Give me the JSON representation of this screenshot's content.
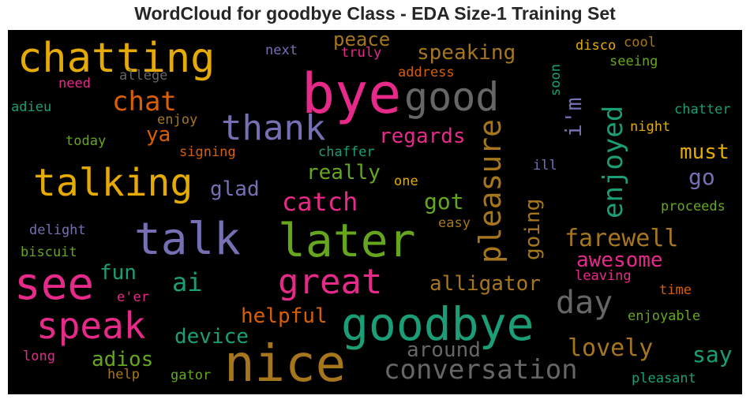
{
  "chart_data": {
    "type": "wordcloud",
    "title": "WordCloud for goodbye Class - EDA Size-1 Training Set",
    "words": [
      {
        "text": "chatting",
        "color": "#e6ab02"
      },
      {
        "text": "bye",
        "color": "#e7298a"
      },
      {
        "text": "good",
        "color": "#666666"
      },
      {
        "text": "thank",
        "color": "#7570b3"
      },
      {
        "text": "chat",
        "color": "#d95f02"
      },
      {
        "text": "peace",
        "color": "#a6761d"
      },
      {
        "text": "speaking",
        "color": "#a6761d"
      },
      {
        "text": "next",
        "color": "#7570b3"
      },
      {
        "text": "truly",
        "color": "#e7298a"
      },
      {
        "text": "disco",
        "color": "#e6ab02"
      },
      {
        "text": "cool",
        "color": "#a6761d"
      },
      {
        "text": "seeing",
        "color": "#66a61e"
      },
      {
        "text": "soon",
        "color": "#1b9e77"
      },
      {
        "text": "address",
        "color": "#d95f02"
      },
      {
        "text": "allege",
        "color": "#666666"
      },
      {
        "text": "need",
        "color": "#e7298a"
      },
      {
        "text": "adieu",
        "color": "#1b9e77"
      },
      {
        "text": "enjoy",
        "color": "#a6761d"
      },
      {
        "text": "today",
        "color": "#66a61e"
      },
      {
        "text": "ya",
        "color": "#d95f02"
      },
      {
        "text": "signing",
        "color": "#d95f02"
      },
      {
        "text": "chaffer",
        "color": "#1b9e77"
      },
      {
        "text": "regards",
        "color": "#e7298a"
      },
      {
        "text": "i'm",
        "color": "#7570b3"
      },
      {
        "text": "enjoyed",
        "color": "#1b9e77"
      },
      {
        "text": "chatter",
        "color": "#1b9e77"
      },
      {
        "text": "night",
        "color": "#e6ab02"
      },
      {
        "text": "must",
        "color": "#e6ab02"
      },
      {
        "text": "pleasure",
        "color": "#a6761d"
      },
      {
        "text": "ill",
        "color": "#7570b3"
      },
      {
        "text": "talking",
        "color": "#e6ab02"
      },
      {
        "text": "really",
        "color": "#66a61e"
      },
      {
        "text": "glad",
        "color": "#7570b3"
      },
      {
        "text": "one",
        "color": "#e6ab02"
      },
      {
        "text": "go",
        "color": "#7570b3"
      },
      {
        "text": "catch",
        "color": "#e7298a"
      },
      {
        "text": "got",
        "color": "#66a61e"
      },
      {
        "text": "proceeds",
        "color": "#66a61e"
      },
      {
        "text": "talk",
        "color": "#7570b3"
      },
      {
        "text": "later",
        "color": "#66a61e"
      },
      {
        "text": "delight",
        "color": "#7570b3"
      },
      {
        "text": "easy",
        "color": "#a6761d"
      },
      {
        "text": "going",
        "color": "#a6761d"
      },
      {
        "text": "farewell",
        "color": "#a6761d"
      },
      {
        "text": "biscuit",
        "color": "#66a61e"
      },
      {
        "text": "awesome",
        "color": "#e7298a"
      },
      {
        "text": "see",
        "color": "#e7298a"
      },
      {
        "text": "fun",
        "color": "#1b9e77"
      },
      {
        "text": "ai",
        "color": "#1b9e77"
      },
      {
        "text": "great",
        "color": "#e7298a"
      },
      {
        "text": "leaving",
        "color": "#e7298a"
      },
      {
        "text": "alligator",
        "color": "#a6761d"
      },
      {
        "text": "e'er",
        "color": "#e7298a"
      },
      {
        "text": "day",
        "color": "#666666"
      },
      {
        "text": "time",
        "color": "#d95f02"
      },
      {
        "text": "speak",
        "color": "#e7298a"
      },
      {
        "text": "helpful",
        "color": "#d95f02"
      },
      {
        "text": "enjoyable",
        "color": "#66a61e"
      },
      {
        "text": "device",
        "color": "#1b9e77"
      },
      {
        "text": "goodbye",
        "color": "#1b9e77"
      },
      {
        "text": "lovely",
        "color": "#a6761d"
      },
      {
        "text": "around",
        "color": "#666666"
      },
      {
        "text": "say",
        "color": "#1b9e77"
      },
      {
        "text": "long",
        "color": "#e7298a"
      },
      {
        "text": "adios",
        "color": "#66a61e"
      },
      {
        "text": "nice",
        "color": "#a6761d"
      },
      {
        "text": "conversation",
        "color": "#666666"
      },
      {
        "text": "help",
        "color": "#a6761d"
      },
      {
        "text": "gator",
        "color": "#66a61e"
      },
      {
        "text": "pleasant",
        "color": "#1b9e77"
      }
    ]
  }
}
